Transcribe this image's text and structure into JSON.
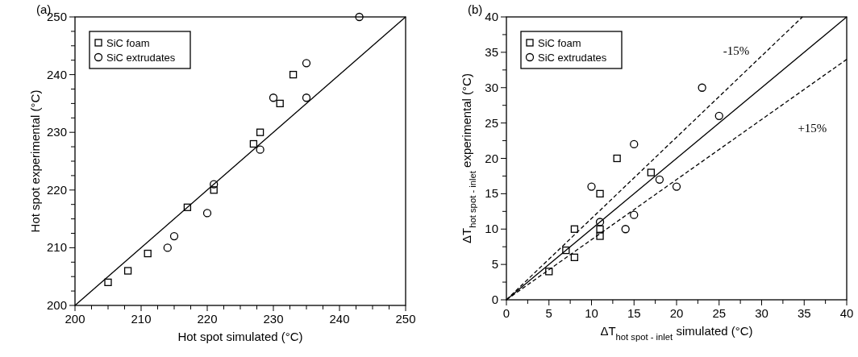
{
  "chart_data": [
    {
      "type": "scatter",
      "title": "(a)",
      "xlabel": "Hot spot simulated (°C)",
      "ylabel": "Hot spot experimental (°C)",
      "xlim": [
        200,
        250
      ],
      "ylim": [
        200,
        250
      ],
      "xticks": [
        200,
        {
          "value": 202.5,
          "label": null
        },
        {
          "value": 205,
          "label": null
        },
        {
          "value": 207.5,
          "label": null
        },
        210,
        {
          "value": 212.5,
          "label": null
        },
        {
          "value": 215,
          "label": null
        },
        {
          "value": 217.5,
          "label": null
        },
        220,
        {
          "value": 222.5,
          "label": null
        },
        {
          "value": 225,
          "label": null
        },
        {
          "value": 227.5,
          "label": null
        },
        230,
        {
          "value": 232.5,
          "label": null
        },
        {
          "value": 235,
          "label": null
        },
        {
          "value": 237.5,
          "label": null
        },
        240,
        {
          "value": 242.5,
          "label": null
        },
        {
          "value": 245,
          "label": null
        },
        {
          "value": 247.5,
          "label": null
        },
        250
      ],
      "yticks": [
        200,
        {
          "value": 202.5,
          "label": null
        },
        {
          "value": 205,
          "label": null
        },
        {
          "value": 207.5,
          "label": null
        },
        210,
        {
          "value": 212.5,
          "label": null
        },
        {
          "value": 215,
          "label": null
        },
        {
          "value": 217.5,
          "label": null
        },
        220,
        {
          "value": 222.5,
          "label": null
        },
        {
          "value": 225,
          "label": null
        },
        {
          "value": 227.5,
          "label": null
        },
        230,
        {
          "value": 232.5,
          "label": null
        },
        {
          "value": 235,
          "label": null
        },
        {
          "value": 237.5,
          "label": null
        },
        240,
        {
          "value": 242.5,
          "label": null
        },
        {
          "value": 245,
          "label": null
        },
        {
          "value": 247.5,
          "label": null
        },
        250
      ],
      "legend": "top left",
      "grid": false,
      "series": [
        {
          "type": "line",
          "color": "#000000",
          "line_style": "solid",
          "x": [
            200,
            250
          ],
          "values": [
            200,
            250
          ]
        },
        {
          "name": "SiC foam",
          "marker": "square",
          "color": "#000000",
          "x": [
            205,
            208,
            211,
            217,
            221,
            227,
            228,
            231,
            233
          ],
          "values": [
            204,
            206,
            209,
            217,
            220,
            228,
            230,
            235,
            240
          ]
        },
        {
          "name": "SiC extrudates",
          "marker": "circle",
          "color": "#000000",
          "x": [
            214,
            215,
            220,
            221,
            228,
            230,
            235,
            235,
            243
          ],
          "values": [
            210,
            212,
            216,
            221,
            227,
            236,
            236,
            242,
            250
          ]
        }
      ]
    },
    {
      "type": "scatter",
      "title": "(b)",
      "xlabel": "ΔT$_{hot spot - inlet}$ simulated (°C)",
      "ylabel": "ΔT$_{hot spot - inlet}$ experimental (°C)",
      "xlim": [
        0,
        40
      ],
      "ylim": [
        0,
        40
      ],
      "xticks": [
        0,
        {
          "value": 2.5,
          "label": null
        },
        5,
        {
          "value": 7.5,
          "label": null
        },
        10,
        {
          "value": 12.5,
          "label": null
        },
        15,
        {
          "value": 17.5,
          "label": null
        },
        20,
        {
          "value": 22.5,
          "label": null
        },
        25,
        {
          "value": 27.5,
          "label": null
        },
        30,
        {
          "value": 32.5,
          "label": null
        },
        35,
        {
          "value": 37.5,
          "label": null
        },
        40
      ],
      "yticks": [
        0,
        {
          "value": 2.5,
          "label": null
        },
        5,
        {
          "value": 7.5,
          "label": null
        },
        10,
        {
          "value": 12.5,
          "label": null
        },
        15,
        {
          "value": 17.5,
          "label": null
        },
        20,
        {
          "value": 22.5,
          "label": null
        },
        25,
        {
          "value": 27.5,
          "label": null
        },
        30,
        {
          "value": 32.5,
          "label": null
        },
        35,
        {
          "value": 37.5,
          "label": null
        },
        40
      ],
      "legend": "top left",
      "grid": false,
      "series": [
        {
          "type": "line",
          "color": "#000000",
          "line_style": "solid",
          "x": [
            0,
            40
          ],
          "values": [
            0,
            40
          ]
        },
        {
          "name": "-15%",
          "type": "line",
          "color": "#000000",
          "line_style": "dashed",
          "x": [
            0,
            34.8
          ],
          "values": [
            0,
            40
          ]
        },
        {
          "name": "+15%",
          "type": "line",
          "color": "#000000",
          "line_style": "dashed",
          "x": [
            0,
            40
          ],
          "values": [
            0,
            34
          ]
        },
        {
          "name": "SiC foam",
          "marker": "square",
          "color": "#000000",
          "x": [
            5,
            7,
            8,
            8,
            11,
            11,
            11,
            13,
            17
          ],
          "values": [
            4,
            7,
            6,
            10,
            9,
            10,
            15,
            20,
            18
          ]
        },
        {
          "name": "SiC extrudates",
          "marker": "circle",
          "color": "#000000",
          "x": [
            10,
            11,
            14,
            15,
            15,
            18,
            20,
            23,
            25
          ],
          "values": [
            16,
            11,
            10,
            12,
            22,
            17,
            16,
            30,
            26
          ]
        }
      ]
    }
  ]
}
